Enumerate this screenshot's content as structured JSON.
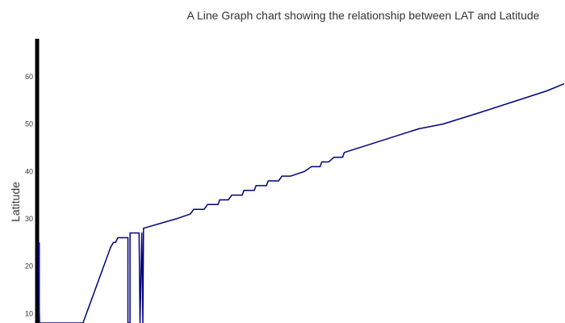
{
  "chart_data": {
    "type": "line",
    "title": "A Line Graph chart showing the relationship between LAT and Latitude",
    "xlabel": "",
    "ylabel": "Latitude",
    "ylim": [
      8,
      68
    ],
    "yticks": [
      10,
      20,
      30,
      40,
      50,
      60
    ],
    "grid": false,
    "legend": "none",
    "series_color": "#000080",
    "axis_color": "#000000",
    "series": [
      {
        "values": [
          [
            0.0,
            25
          ],
          [
            0.5,
            8
          ],
          [
            3.0,
            8
          ],
          [
            13.0,
            8
          ],
          [
            21.0,
            24
          ],
          [
            21.8,
            25
          ],
          [
            22.4,
            25
          ],
          [
            23.1,
            26
          ],
          [
            25.5,
            26
          ],
          [
            26.0,
            26
          ],
          [
            26.0,
            8
          ],
          [
            26.6,
            8
          ],
          [
            26.6,
            27
          ],
          [
            29.2,
            27
          ],
          [
            29.5,
            8
          ],
          [
            30.0,
            27
          ],
          [
            30.3,
            8
          ],
          [
            30.5,
            28
          ],
          [
            40.0,
            30
          ],
          [
            44.0,
            31
          ],
          [
            45.0,
            32
          ],
          [
            48.0,
            32
          ],
          [
            49.0,
            33
          ],
          [
            52.0,
            33
          ],
          [
            52.5,
            34
          ],
          [
            55.0,
            34
          ],
          [
            56.0,
            35
          ],
          [
            59.0,
            35
          ],
          [
            59.5,
            36
          ],
          [
            62.5,
            36
          ],
          [
            63.0,
            37
          ],
          [
            66.0,
            37
          ],
          [
            66.5,
            38
          ],
          [
            69.5,
            38
          ],
          [
            70.5,
            39
          ],
          [
            73.0,
            39
          ],
          [
            77.0,
            40
          ],
          [
            79.0,
            41
          ],
          [
            81.5,
            41
          ],
          [
            82.0,
            42
          ],
          [
            84.0,
            42
          ],
          [
            85.5,
            43
          ],
          [
            88.0,
            43
          ],
          [
            88.5,
            44
          ],
          [
            110.0,
            49
          ],
          [
            117.0,
            50
          ],
          [
            128.0,
            52.5
          ],
          [
            147.0,
            57
          ],
          [
            152.0,
            58.5
          ]
        ]
      }
    ]
  }
}
